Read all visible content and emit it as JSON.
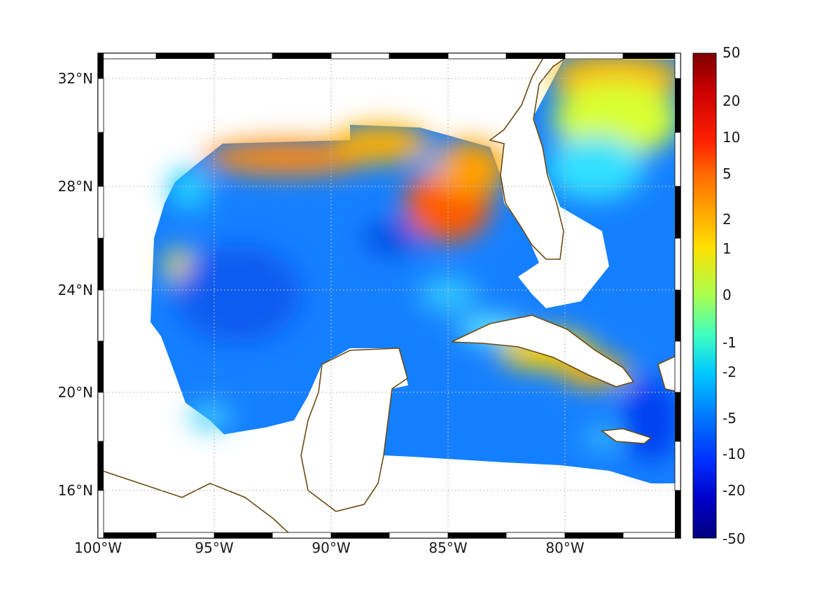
{
  "map": {
    "lon_ticks": [
      "100°W",
      "95°W",
      "90°W",
      "85°W",
      "80°W"
    ],
    "lat_ticks": [
      "32°N",
      "28°N",
      "24°N",
      "20°N",
      "16°N"
    ],
    "coastline_color": "#6b4a12",
    "land_color": "#ffffff",
    "gridlines": true
  },
  "colorbar": {
    "labels": [
      "50",
      "20",
      "10",
      "5",
      "2",
      "1",
      "0",
      "-1",
      "-2",
      "-5",
      "-10",
      "-20",
      "-50"
    ],
    "colors": [
      "#7f0000",
      "#cc0000",
      "#ff2000",
      "#ff6a00",
      "#ffb000",
      "#ffe000",
      "#a8ff50",
      "#40ffc0",
      "#00c8ff",
      "#0078ff",
      "#0030ff",
      "#0000c8",
      "#00007f"
    ]
  }
}
